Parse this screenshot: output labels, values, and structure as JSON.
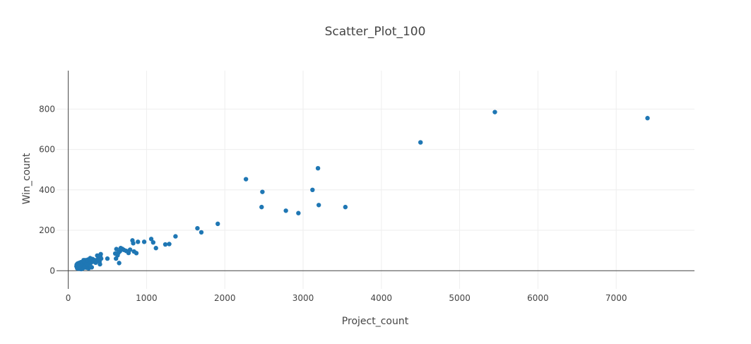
{
  "chart_data": {
    "type": "scatter",
    "title": "Scatter_Plot_100",
    "xlabel": "Project_count",
    "ylabel": "Win_count",
    "xlim": [
      -150,
      8000
    ],
    "ylim": [
      -90,
      990
    ],
    "xticks": [
      0,
      1000,
      2000,
      3000,
      4000,
      5000,
      6000,
      7000
    ],
    "yticks": [
      0,
      200,
      400,
      600,
      800
    ],
    "grid": true,
    "marker_color": "#1f77b4",
    "series": [
      {
        "points": [
          [
            7400,
            755
          ],
          [
            5450,
            785
          ],
          [
            4500,
            635
          ],
          [
            3540,
            315
          ],
          [
            3200,
            325
          ],
          [
            3190,
            507
          ],
          [
            3120,
            400
          ],
          [
            2940,
            285
          ],
          [
            2780,
            297
          ],
          [
            2480,
            390
          ],
          [
            2470,
            315
          ],
          [
            2270,
            453
          ],
          [
            1910,
            232
          ],
          [
            1700,
            190
          ],
          [
            1650,
            210
          ],
          [
            1370,
            170
          ],
          [
            1290,
            132
          ],
          [
            1240,
            130
          ],
          [
            1120,
            112
          ],
          [
            1085,
            140
          ],
          [
            1060,
            157
          ],
          [
            970,
            143
          ],
          [
            890,
            143
          ],
          [
            870,
            87
          ],
          [
            840,
            95
          ],
          [
            830,
            136
          ],
          [
            820,
            150
          ],
          [
            790,
            104
          ],
          [
            770,
            88
          ],
          [
            740,
            98
          ],
          [
            710,
            103
          ],
          [
            690,
            108
          ],
          [
            670,
            112
          ],
          [
            660,
            96
          ],
          [
            650,
            38
          ],
          [
            640,
            88
          ],
          [
            630,
            76
          ],
          [
            615,
            107
          ],
          [
            610,
            60
          ],
          [
            600,
            85
          ],
          [
            500,
            60
          ],
          [
            420,
            60
          ],
          [
            415,
            82
          ],
          [
            410,
            70
          ],
          [
            405,
            32
          ],
          [
            400,
            45
          ],
          [
            380,
            57
          ],
          [
            370,
            75
          ],
          [
            340,
            52
          ],
          [
            310,
            58
          ],
          [
            300,
            17
          ],
          [
            290,
            40
          ],
          [
            280,
            62
          ],
          [
            270,
            48
          ],
          [
            260,
            32
          ],
          [
            250,
            55
          ],
          [
            245,
            22
          ],
          [
            240,
            40
          ],
          [
            235,
            45
          ],
          [
            230,
            30
          ],
          [
            220,
            18
          ],
          [
            215,
            52
          ],
          [
            210,
            38
          ],
          [
            205,
            26
          ],
          [
            200,
            15
          ],
          [
            195,
            40
          ],
          [
            190,
            28
          ],
          [
            185,
            22
          ],
          [
            180,
            36
          ],
          [
            175,
            12
          ],
          [
            170,
            30
          ],
          [
            165,
            25
          ],
          [
            160,
            42
          ],
          [
            155,
            18
          ],
          [
            150,
            32
          ],
          [
            145,
            22
          ],
          [
            140,
            15
          ],
          [
            135,
            38
          ],
          [
            130,
            10
          ],
          [
            125,
            28
          ],
          [
            120,
            20
          ],
          [
            118,
            35
          ],
          [
            115,
            12
          ],
          [
            112,
            25
          ],
          [
            110,
            18
          ],
          [
            108,
            30
          ],
          [
            105,
            22
          ],
          [
            260,
            12
          ],
          [
            235,
            15
          ],
          [
            200,
            48
          ],
          [
            180,
            10
          ],
          [
            165,
            8
          ],
          [
            150,
            25
          ],
          [
            230,
            22
          ],
          [
            280,
            36
          ],
          [
            320,
            45
          ],
          [
            350,
            40
          ],
          [
            195,
            52
          ],
          [
            215,
            20
          ],
          [
            240,
            30
          ]
        ]
      }
    ]
  }
}
